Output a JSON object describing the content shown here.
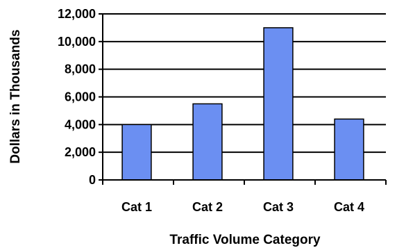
{
  "chart_data": {
    "type": "bar",
    "categories": [
      "Cat 1",
      "Cat 2",
      "Cat 3",
      "Cat 4"
    ],
    "values": [
      4000,
      5500,
      11000,
      4400
    ],
    "title": "",
    "xlabel": "Traffic Volume Category",
    "ylabel": "Dollars in Thousands",
    "ylim": [
      0,
      12000
    ],
    "yticks": [
      0,
      2000,
      4000,
      6000,
      8000,
      10000,
      12000
    ],
    "ytick_labels": [
      "0",
      "2,000",
      "4,000",
      "6,000",
      "8,000",
      "10,000",
      "12,000"
    ],
    "grid": true,
    "legend": "none",
    "colors": {
      "bar_fill": "#6b8ff2",
      "bar_stroke": "#000000",
      "grid": "#000000",
      "axis": "#000000"
    }
  }
}
